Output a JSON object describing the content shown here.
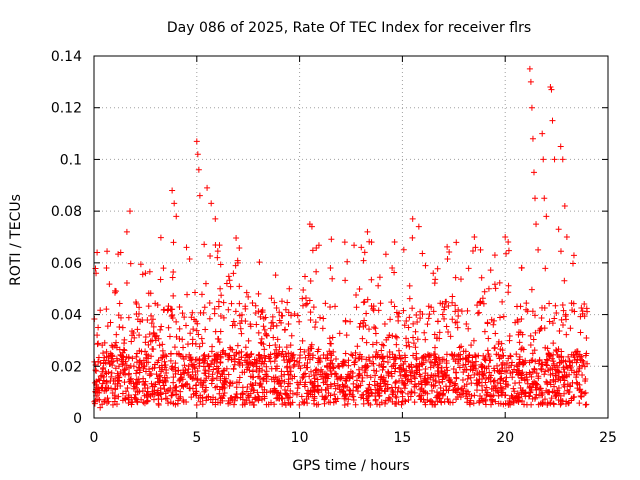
{
  "chart_data": {
    "type": "scatter",
    "title": "Day 086 of 2025, Rate Of TEC Index for receiver flrs",
    "xlabel": "GPS time / hours",
    "ylabel": "ROTI / TECUs",
    "xlim": [
      0,
      25
    ],
    "ylim": [
      0,
      0.14
    ],
    "x_ticks": [
      0,
      5,
      10,
      15,
      20,
      25
    ],
    "x_tick_labels": [
      "0",
      "5",
      "10",
      "15",
      "20",
      "25"
    ],
    "y_ticks": [
      0,
      0.02,
      0.04,
      0.06,
      0.08,
      0.1,
      0.12,
      0.14
    ],
    "y_tick_labels": [
      "0",
      "0.02",
      "0.04",
      "0.06",
      "0.08",
      "0.1",
      "0.12",
      "0.14"
    ],
    "grid": true,
    "marker": "plus",
    "color": "#ff0000",
    "series": [
      {
        "name": "ROTI",
        "points": [
          [
            0.1,
            0.056
          ],
          [
            0.15,
            0.064
          ],
          [
            0.2,
            0.035
          ],
          [
            0.3,
            0.004
          ],
          [
            1.3,
            0.064
          ],
          [
            1.6,
            0.072
          ],
          [
            1.75,
            0.08
          ],
          [
            2.5,
            0.056
          ],
          [
            3.8,
            0.088
          ],
          [
            3.9,
            0.083
          ],
          [
            4.0,
            0.078
          ],
          [
            4.5,
            0.066
          ],
          [
            5.0,
            0.107
          ],
          [
            5.05,
            0.102
          ],
          [
            5.1,
            0.096
          ],
          [
            5.15,
            0.086
          ],
          [
            5.5,
            0.089
          ],
          [
            5.7,
            0.083
          ],
          [
            5.9,
            0.077
          ],
          [
            6.0,
            0.062
          ],
          [
            7.0,
            0.06
          ],
          [
            8.0,
            0.048
          ],
          [
            9.5,
            0.05
          ],
          [
            10.5,
            0.075
          ],
          [
            10.6,
            0.074
          ],
          [
            11.5,
            0.058
          ],
          [
            12.2,
            0.068
          ],
          [
            13.0,
            0.066
          ],
          [
            13.3,
            0.072
          ],
          [
            13.5,
            0.068
          ],
          [
            14.5,
            0.058
          ],
          [
            15.5,
            0.077
          ],
          [
            15.8,
            0.074
          ],
          [
            16.5,
            0.056
          ],
          [
            18.5,
            0.07
          ],
          [
            18.8,
            0.065
          ],
          [
            19.5,
            0.063
          ],
          [
            20.0,
            0.07
          ],
          [
            20.8,
            0.058
          ],
          [
            21.2,
            0.135
          ],
          [
            21.25,
            0.13
          ],
          [
            21.3,
            0.12
          ],
          [
            21.35,
            0.108
          ],
          [
            21.4,
            0.095
          ],
          [
            21.45,
            0.085
          ],
          [
            21.5,
            0.075
          ],
          [
            21.6,
            0.065
          ],
          [
            21.8,
            0.11
          ],
          [
            21.85,
            0.1
          ],
          [
            21.9,
            0.085
          ],
          [
            22.0,
            0.078
          ],
          [
            22.2,
            0.128
          ],
          [
            22.25,
            0.127
          ],
          [
            22.3,
            0.115
          ],
          [
            22.4,
            0.1
          ],
          [
            22.6,
            0.073
          ],
          [
            22.7,
            0.105
          ],
          [
            22.8,
            0.1
          ],
          [
            22.9,
            0.082
          ],
          [
            23.0,
            0.07
          ]
        ],
        "baseline_band": {
          "low": 0.005,
          "high": 0.025
        },
        "dense_points_count": 2400
      }
    ]
  }
}
